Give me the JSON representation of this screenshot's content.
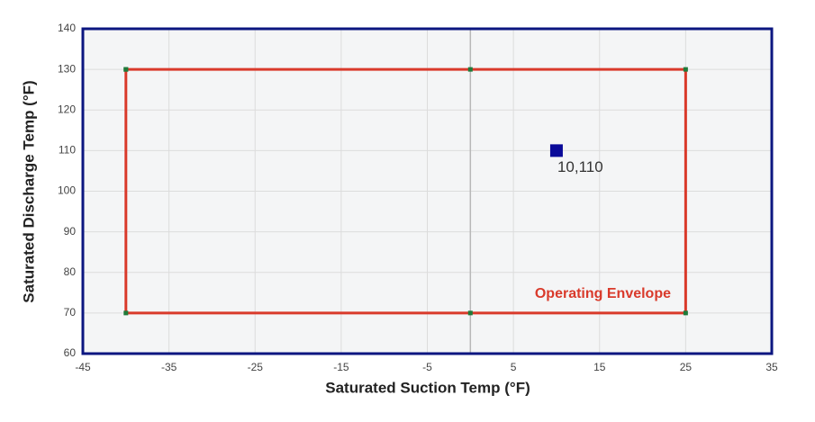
{
  "chart_data": {
    "type": "scatter",
    "xlabel": "Saturated Suction Temp (°F)",
    "ylabel": "Saturated Discharge Temp (°F)",
    "annotation": "Operating Envelope",
    "xlim": [
      -45,
      35
    ],
    "xticks": [
      -45,
      -35,
      -25,
      -15,
      -5,
      5,
      15,
      25,
      35
    ],
    "ylim": [
      60,
      140
    ],
    "yticks": [
      60,
      70,
      80,
      90,
      100,
      110,
      120,
      130,
      140
    ],
    "grid": true,
    "zero_line": true,
    "series": [
      {
        "mode": "line",
        "color": "#d93a2b",
        "marker_color": "#1f7a3a",
        "x": [
          -40,
          0,
          25,
          25,
          0,
          -40,
          -40
        ],
        "values": [
          130,
          130,
          130,
          70,
          70,
          70,
          130
        ]
      },
      {
        "mode": "marker",
        "color": "#0a0a99",
        "x": [
          10
        ],
        "values": [
          110
        ],
        "value_labels": [
          "10,110"
        ]
      }
    ]
  }
}
